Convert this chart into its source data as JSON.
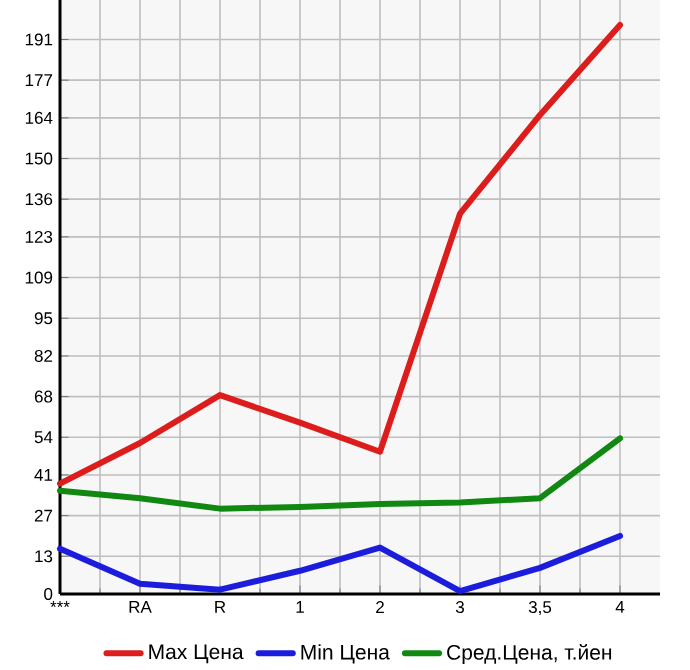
{
  "chart_data": {
    "type": "line",
    "categories": [
      "***",
      "RA",
      "R",
      "1",
      "2",
      "3",
      "3,5",
      "4"
    ],
    "series": [
      {
        "name": "Max Цена",
        "color": "#dd1c1c",
        "values": [
          38,
          52,
          68.5,
          59,
          49,
          131,
          165,
          196
        ]
      },
      {
        "name": "Min Цена",
        "color": "#1c1cdd",
        "values": [
          15.6,
          3.5,
          1.5,
          8,
          16,
          1,
          9,
          20
        ]
      },
      {
        "name": "Сред.Цена, т.йен",
        "color": "#118811",
        "values": [
          35.6,
          33,
          29.4,
          30,
          31,
          31.5,
          33,
          53.6
        ]
      }
    ],
    "ylim": [
      0,
      204.6
    ],
    "yticks": [
      0,
      13,
      27,
      41,
      54,
      68,
      82,
      95,
      109,
      123,
      136,
      150,
      164,
      177,
      191
    ],
    "grid": true,
    "legend": "bottom",
    "marker": "none",
    "line_style": "solid"
  }
}
